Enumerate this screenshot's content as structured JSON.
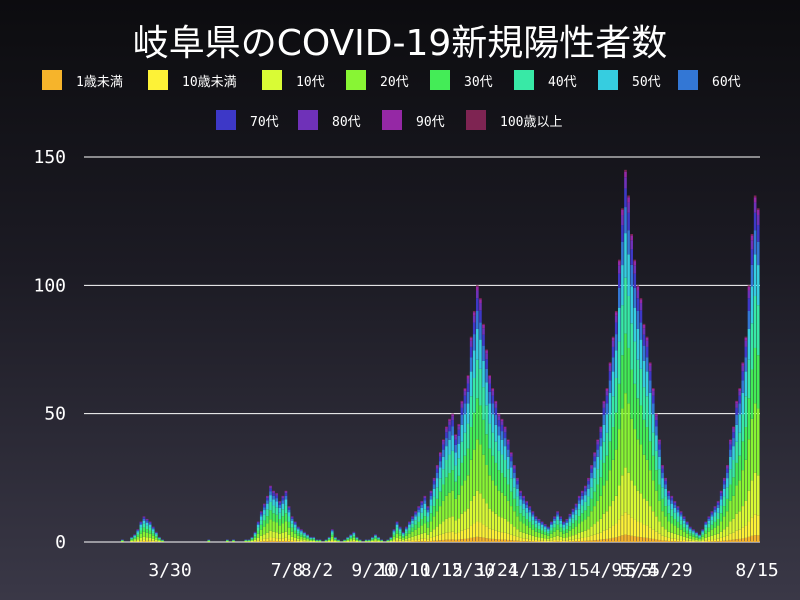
{
  "title": "岐阜県のCOVID-19新規陽性者数",
  "legend": [
    {
      "label": "1歳未満",
      "color": "#f6b42b"
    },
    {
      "label": "10歳未満",
      "color": "#fdf237"
    },
    {
      "label": "10代",
      "color": "#d9fb35"
    },
    {
      "label": "20代",
      "color": "#88f534"
    },
    {
      "label": "30代",
      "color": "#44ec57"
    },
    {
      "label": "40代",
      "color": "#38e9a6"
    },
    {
      "label": "50代",
      "color": "#36cde0"
    },
    {
      "label": "60代",
      "color": "#3377d5"
    },
    {
      "label": "70代",
      "color": "#3d38c7"
    },
    {
      "label": "80代",
      "color": "#6f31b8"
    },
    {
      "label": "90代",
      "color": "#9528a5"
    },
    {
      "label": "100歳以上",
      "color": "#7e2452"
    }
  ],
  "chart_data": {
    "type": "bar",
    "stacked": true,
    "title": "岐阜県のCOVID-19新規陽性者数",
    "xlabel": "",
    "ylabel": "",
    "ylim": [
      0,
      150
    ],
    "yticks": [
      0,
      50,
      100,
      150
    ],
    "xtick_labels": [
      "3/30",
      "7/8",
      "8/2",
      "9/20",
      "10/11",
      "10/15",
      "12/30",
      "1/24",
      "1/13",
      "3/15",
      "4/9",
      "5/5",
      "5/4",
      "5/29",
      "8/15"
    ],
    "grid": "horizontal",
    "legend_position": "top",
    "series": [
      {
        "name": "1歳未満",
        "color": "#f6b42b"
      },
      {
        "name": "10歳未満",
        "color": "#fdf237"
      },
      {
        "name": "10代",
        "color": "#d9fb35"
      },
      {
        "name": "20代",
        "color": "#88f534"
      },
      {
        "name": "30代",
        "color": "#44ec57"
      },
      {
        "name": "40代",
        "color": "#38e9a6"
      },
      {
        "name": "50代",
        "color": "#36cde0"
      },
      {
        "name": "60代",
        "color": "#3377d5"
      },
      {
        "name": "70代",
        "color": "#3d38c7"
      },
      {
        "name": "80代",
        "color": "#6f31b8"
      },
      {
        "name": "90代",
        "color": "#9528a5"
      },
      {
        "name": "100歳以上",
        "color": "#7e2452"
      }
    ],
    "daily_totals": [
      0,
      0,
      0,
      0,
      0,
      0,
      0,
      0,
      0,
      0,
      0,
      0,
      1,
      0,
      0,
      2,
      3,
      5,
      8,
      10,
      9,
      8,
      6,
      4,
      2,
      1,
      0,
      0,
      0,
      0,
      0,
      0,
      0,
      0,
      0,
      0,
      0,
      0,
      0,
      0,
      1,
      0,
      0,
      0,
      0,
      0,
      1,
      0,
      1,
      0,
      0,
      0,
      1,
      1,
      2,
      4,
      8,
      12,
      15,
      18,
      22,
      20,
      19,
      16,
      18,
      20,
      14,
      10,
      8,
      6,
      5,
      4,
      3,
      2,
      2,
      1,
      1,
      0,
      1,
      2,
      5,
      2,
      1,
      0,
      1,
      2,
      3,
      4,
      2,
      1,
      0,
      1,
      1,
      2,
      3,
      2,
      1,
      0,
      1,
      2,
      5,
      8,
      6,
      4,
      6,
      8,
      10,
      12,
      14,
      16,
      18,
      14,
      20,
      25,
      30,
      35,
      40,
      45,
      48,
      50,
      42,
      46,
      55,
      60,
      65,
      80,
      90,
      100,
      95,
      85,
      75,
      65,
      60,
      55,
      50,
      48,
      45,
      40,
      35,
      30,
      25,
      20,
      18,
      16,
      14,
      12,
      10,
      9,
      8,
      7,
      6,
      8,
      10,
      12,
      10,
      8,
      9,
      11,
      13,
      15,
      18,
      20,
      22,
      25,
      30,
      35,
      40,
      45,
      55,
      60,
      70,
      80,
      90,
      110,
      130,
      145,
      135,
      120,
      110,
      100,
      95,
      85,
      80,
      70,
      60,
      50,
      40,
      30,
      25,
      20,
      18,
      16,
      14,
      12,
      10,
      8,
      6,
      5,
      4,
      3,
      5,
      8,
      10,
      12,
      14,
      16,
      20,
      25,
      30,
      40,
      45,
      55,
      60,
      70,
      80,
      100,
      120,
      135,
      130
    ]
  }
}
